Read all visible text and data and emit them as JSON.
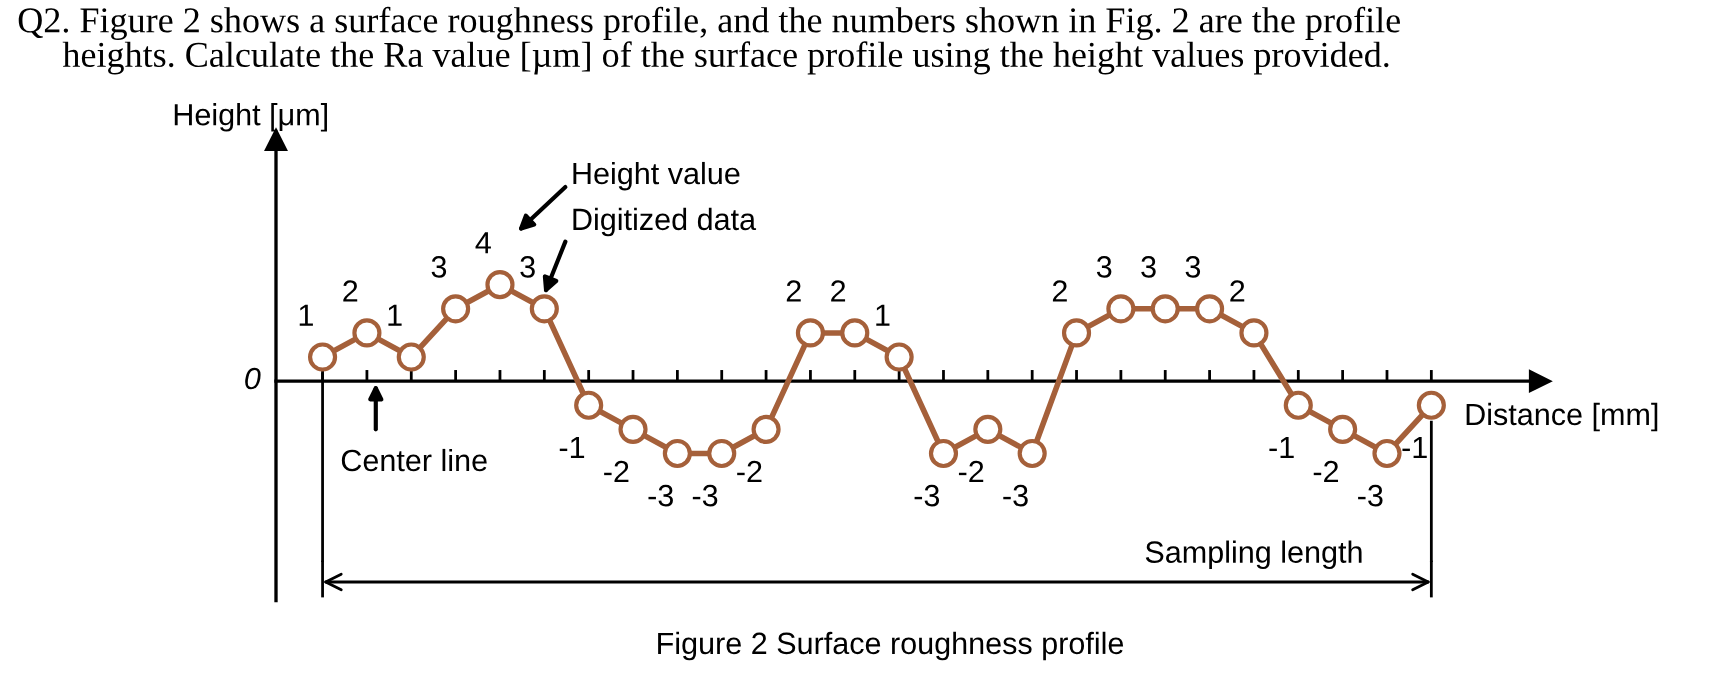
{
  "chart_data": {
    "type": "line",
    "title": "Q2. Figure 2 shows a surface roughness profile, and the numbers shown in Fig. 2 are the profile\n     heights. Calculate the Ra value [µm] of the surface profile using the height values provided.",
    "xlabel": "Distance [mm]",
    "categories": [
      null,
      null,
      null,
      null,
      null,
      null,
      null,
      null,
      null,
      null,
      null,
      null,
      null,
      null,
      null,
      null,
      null,
      null,
      null,
      null,
      null,
      null,
      null,
      null,
      null,
      null
    ],
    "series": [
      {
        "color": "#a5603a",
        "values": [
          1,
          2,
          1,
          3,
          4,
          3,
          -1,
          -2,
          -3,
          -3,
          -2,
          2,
          2,
          1,
          -3,
          -2,
          -3,
          2,
          3,
          3,
          3,
          2,
          -1,
          -2,
          -3,
          -1
        ]
      }
    ],
    "marker": "circle",
    "line_style": "solid",
    "data_labels": true,
    "grid": false,
    "annotations": [
      "Height [μm]",
      "0",
      "Height value",
      "Digitized data",
      "Center line",
      "Sampling length",
      "Figure 2 Surface roughness profile"
    ]
  }
}
